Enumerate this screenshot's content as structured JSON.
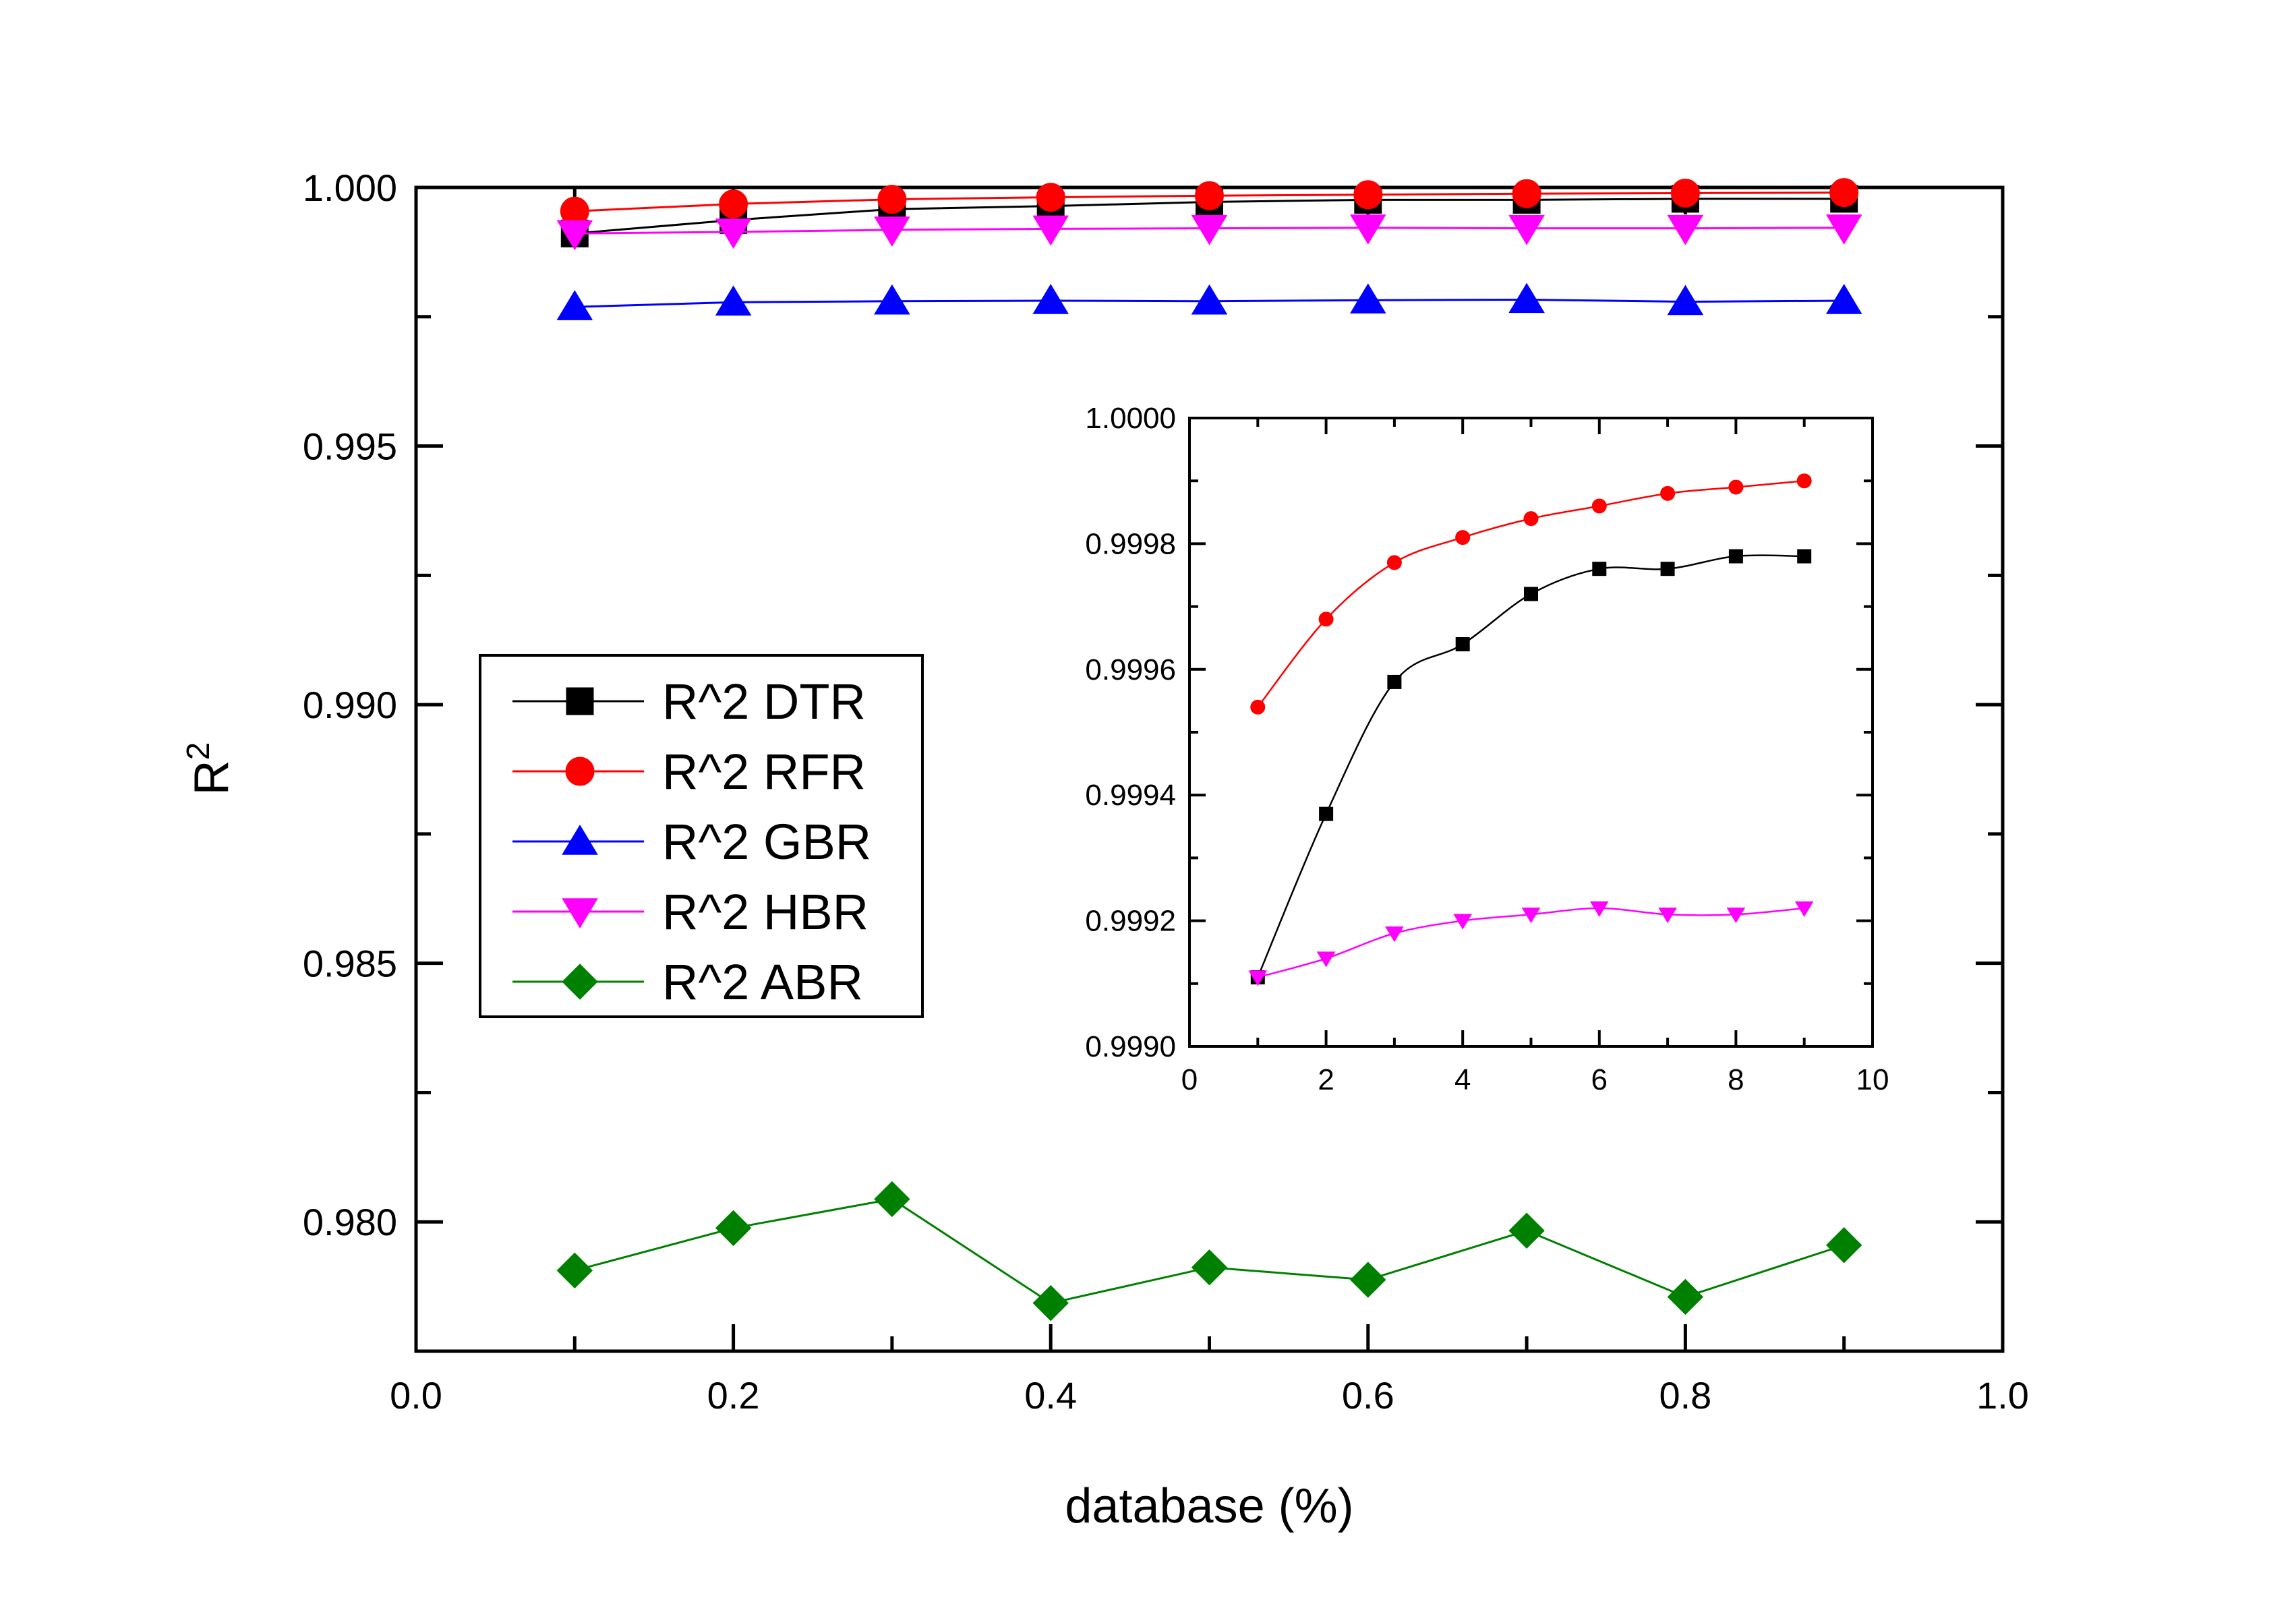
{
  "chart_data": [
    {
      "id": "main",
      "type": "line",
      "xlabel": "database (%)",
      "ylabel_base": "R",
      "ylabel_sup": "2",
      "xlim": [
        0.0,
        1.0
      ],
      "ylim": [
        0.9775,
        1.0
      ],
      "xticks": [
        "0.0",
        "0.2",
        "0.4",
        "0.6",
        "0.8",
        "1.0"
      ],
      "yticks": [
        "0.980",
        "0.985",
        "0.990",
        "0.995",
        "1.000"
      ],
      "x": [
        0.1,
        0.2,
        0.3,
        0.4,
        0.5,
        0.6,
        0.7,
        0.8,
        0.9
      ],
      "legend_position": "center-left",
      "series": [
        {
          "name": "R^2 DTR",
          "color": "#000000",
          "marker": "square",
          "values": [
            0.99911,
            0.99937,
            0.99958,
            0.99964,
            0.99972,
            0.99976,
            0.99976,
            0.99978,
            0.99978
          ]
        },
        {
          "name": "R^2 RFR",
          "color": "#ff0000",
          "marker": "circle",
          "values": [
            0.99954,
            0.99968,
            0.99977,
            0.99981,
            0.99984,
            0.99986,
            0.99988,
            0.99989,
            0.9999
          ]
        },
        {
          "name": "R^2 GBR",
          "color": "#0000ff",
          "marker": "triangle-up",
          "values": [
            0.99769,
            0.99778,
            0.9978,
            0.99781,
            0.9978,
            0.99782,
            0.99783,
            0.99779,
            0.99781
          ]
        },
        {
          "name": "R^2 HBR",
          "color": "#ff00ff",
          "marker": "triangle-down",
          "values": [
            0.99911,
            0.99914,
            0.99918,
            0.9992,
            0.99921,
            0.99922,
            0.99921,
            0.99921,
            0.99922
          ]
        },
        {
          "name": "R^2 ABR",
          "color": "#008000",
          "marker": "diamond",
          "values": [
            0.97906,
            0.97988,
            0.98044,
            0.97843,
            0.97912,
            0.97888,
            0.97983,
            0.97855,
            0.97955
          ]
        }
      ]
    },
    {
      "id": "inset",
      "type": "line",
      "xlim": [
        0,
        10
      ],
      "ylim": [
        0.999,
        1.0
      ],
      "xticks": [
        "0",
        "2",
        "4",
        "6",
        "8",
        "10"
      ],
      "yticks": [
        "0.9990",
        "0.9992",
        "0.9994",
        "0.9996",
        "0.9998",
        "1.0000"
      ],
      "x": [
        1,
        2,
        3,
        4,
        5,
        6,
        7,
        8,
        9
      ],
      "series": [
        {
          "name": "R^2 DTR",
          "color": "#000000",
          "marker": "square",
          "values": [
            0.99911,
            0.99937,
            0.99958,
            0.99964,
            0.99972,
            0.99976,
            0.99976,
            0.99978,
            0.99978
          ]
        },
        {
          "name": "R^2 RFR",
          "color": "#ff0000",
          "marker": "circle",
          "values": [
            0.99954,
            0.99968,
            0.99977,
            0.99981,
            0.99984,
            0.99986,
            0.99988,
            0.99989,
            0.9999
          ]
        },
        {
          "name": "R^2 HBR",
          "color": "#ff00ff",
          "marker": "triangle-down",
          "values": [
            0.99911,
            0.99914,
            0.99918,
            0.9992,
            0.99921,
            0.99922,
            0.99921,
            0.99921,
            0.99922
          ]
        }
      ]
    }
  ]
}
